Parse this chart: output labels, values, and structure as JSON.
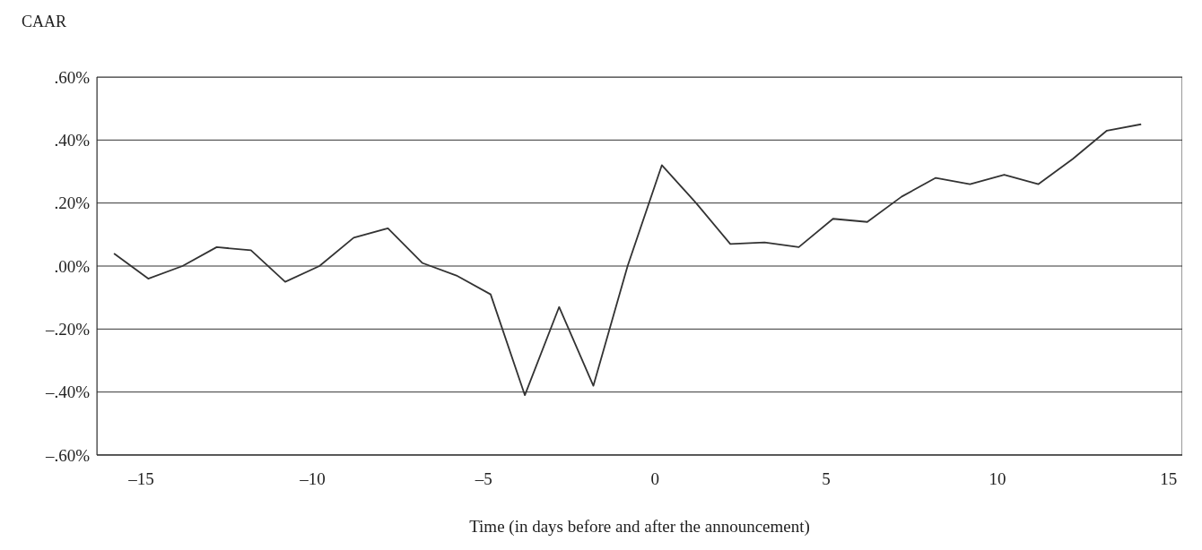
{
  "chart_data": {
    "type": "line",
    "ylabel": "CAAR",
    "xlabel": "Time (in days before and after the announcement)",
    "x": [
      -15.8,
      -14.8,
      -13.8,
      -12.8,
      -11.8,
      -10.8,
      -9.8,
      -8.8,
      -7.8,
      -6.8,
      -5.8,
      -4.8,
      -3.8,
      -2.8,
      -1.8,
      -0.8,
      0.2,
      1.2,
      2.2,
      3.2,
      4.2,
      5.2,
      6.2,
      7.2,
      8.2,
      9.2,
      10.2,
      11.2,
      12.2,
      13.2,
      14.2
    ],
    "series": [
      {
        "color": "#333333",
        "values": [
          0.04,
          -0.04,
          0.0,
          0.06,
          0.05,
          -0.05,
          0.0,
          0.09,
          0.12,
          0.01,
          -0.03,
          -0.09,
          -0.41,
          -0.13,
          -0.38,
          0.0,
          0.32,
          0.2,
          0.07,
          0.075,
          0.06,
          0.15,
          0.14,
          0.22,
          0.28,
          0.26,
          0.29,
          0.26,
          0.34,
          0.43,
          0.45
        ]
      }
    ],
    "xlim": [
      -16.3,
      15.4
    ],
    "xticks": [
      {
        "value": -15,
        "label": "–15"
      },
      {
        "value": -10,
        "label": "–10"
      },
      {
        "value": -5,
        "label": "–5"
      },
      0,
      5,
      10,
      15
    ],
    "ylim": [
      -0.6,
      0.6
    ],
    "yticks": [
      {
        "value": -0.6,
        "label": "–.60%"
      },
      {
        "value": -0.4,
        "label": "–.40%"
      },
      {
        "value": -0.2,
        "label": "–.20%"
      },
      {
        "value": 0,
        "label": ".00%"
      },
      {
        "value": 0.2,
        "label": ".20%"
      },
      {
        "value": 0.4,
        "label": ".40%"
      },
      {
        "value": 0.6,
        "label": ".60%"
      }
    ],
    "grid": "y",
    "legend": false,
    "marker": "none",
    "line_style": "solid"
  }
}
